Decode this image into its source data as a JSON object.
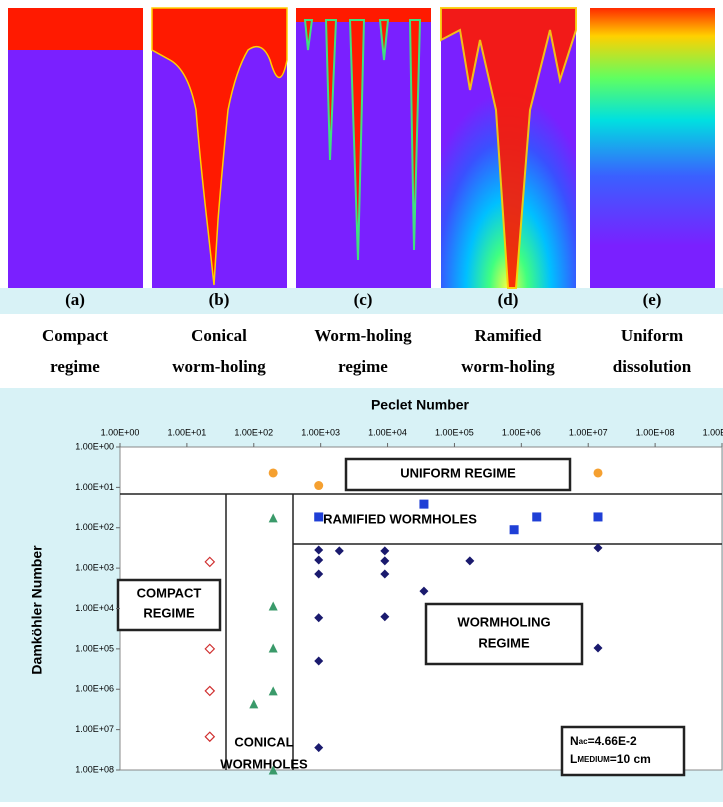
{
  "panels": [
    {
      "label": "(a)",
      "caption": [
        "Compact",
        "regime"
      ]
    },
    {
      "label": "(b)",
      "caption": [
        "Conical",
        "worm-holing"
      ]
    },
    {
      "label": "(c)",
      "caption": [
        "Worm-holing",
        "regime"
      ]
    },
    {
      "label": "(d)",
      "caption": [
        "Ramified",
        "worm-holing"
      ]
    },
    {
      "label": "(e)",
      "caption": [
        "Uniform",
        "dissolution"
      ]
    }
  ],
  "chart_data": {
    "type": "scatter",
    "xlabel": "Peclet Number",
    "ylabel": "Damköhler Number",
    "xlog": true,
    "ylog": true,
    "yinverted": true,
    "xlim": [
      1,
      1000000000
    ],
    "ylim": [
      1,
      100000000
    ],
    "xticks": [
      {
        "value": 1,
        "label": "1.00E+00"
      },
      {
        "value": 10,
        "label": "1.00E+01"
      },
      {
        "value": 100,
        "label": "1.00E+02"
      },
      {
        "value": 1000,
        "label": "1.00E+03"
      },
      {
        "value": 10000,
        "label": "1.00E+04"
      },
      {
        "value": 100000,
        "label": "1.00E+05"
      },
      {
        "value": 1000000,
        "label": "1.00E+06"
      },
      {
        "value": 10000000,
        "label": "1.00E+07"
      },
      {
        "value": 100000000,
        "label": "1.00E+08"
      },
      {
        "value": 1000000000,
        "label": "1.00E+09"
      }
    ],
    "yticks": [
      {
        "value": 1,
        "label": "1.00E+00"
      },
      {
        "value": 10,
        "label": "1.00E+01"
      },
      {
        "value": 100,
        "label": "1.00E+02"
      },
      {
        "value": 1000,
        "label": "1.00E+03"
      },
      {
        "value": 10000,
        "label": "1.00E+04"
      },
      {
        "value": 100000,
        "label": "1.00E+05"
      },
      {
        "value": 1000000,
        "label": "1.00E+06"
      },
      {
        "value": 10000000,
        "label": "1.00E+07"
      },
      {
        "value": 100000000,
        "label": "1.00E+08"
      }
    ],
    "series": [
      {
        "marker": "circle",
        "color": "#f5a030",
        "x": [
          195,
          935,
          14000000
        ],
        "y": [
          4.4,
          9,
          4.4
        ]
      },
      {
        "marker": "square",
        "color": "#1f3fd6",
        "x": [
          935,
          35000,
          780000,
          1700000,
          14000000
        ],
        "y": [
          54,
          26,
          112,
          54,
          54
        ]
      },
      {
        "marker": "diamond",
        "color": "#1a1a6e",
        "x": [
          935,
          935,
          935,
          935,
          935,
          935,
          1900,
          9100,
          9100,
          9100,
          9100,
          35000,
          170000,
          14000000,
          14000000
        ],
        "y": [
          355,
          630,
          1400,
          17000,
          200000,
          28000000,
          375,
          375,
          660,
          1400,
          16000,
          3700,
          660,
          316,
          95000
        ]
      },
      {
        "marker": "triangle",
        "color": "#3a9a6a",
        "x": [
          195,
          195,
          195,
          195,
          100,
          195
        ],
        "y": [
          57,
          8700,
          95000,
          1100000,
          2300000,
          100000000
        ]
      },
      {
        "marker": "open-diamond",
        "color": "#d03030",
        "x": [
          22,
          22,
          22,
          22
        ],
        "y": [
          700,
          100000,
          1100000,
          15000000
        ]
      }
    ],
    "annotations": [
      "UNIFORM REGIME",
      "RAMIFIED WORMHOLES",
      [
        "COMPACT",
        "REGIME"
      ],
      [
        "WORMHOLING",
        "REGIME"
      ],
      [
        "CONICAL",
        "WORMHOLES"
      ]
    ],
    "parameters": [
      {
        "symbol": "N",
        "subscript": "ac",
        "value": "=4.66E-2"
      },
      {
        "symbol": "L",
        "subscript": "MEDIUM",
        "value": "=10 cm"
      }
    ]
  }
}
